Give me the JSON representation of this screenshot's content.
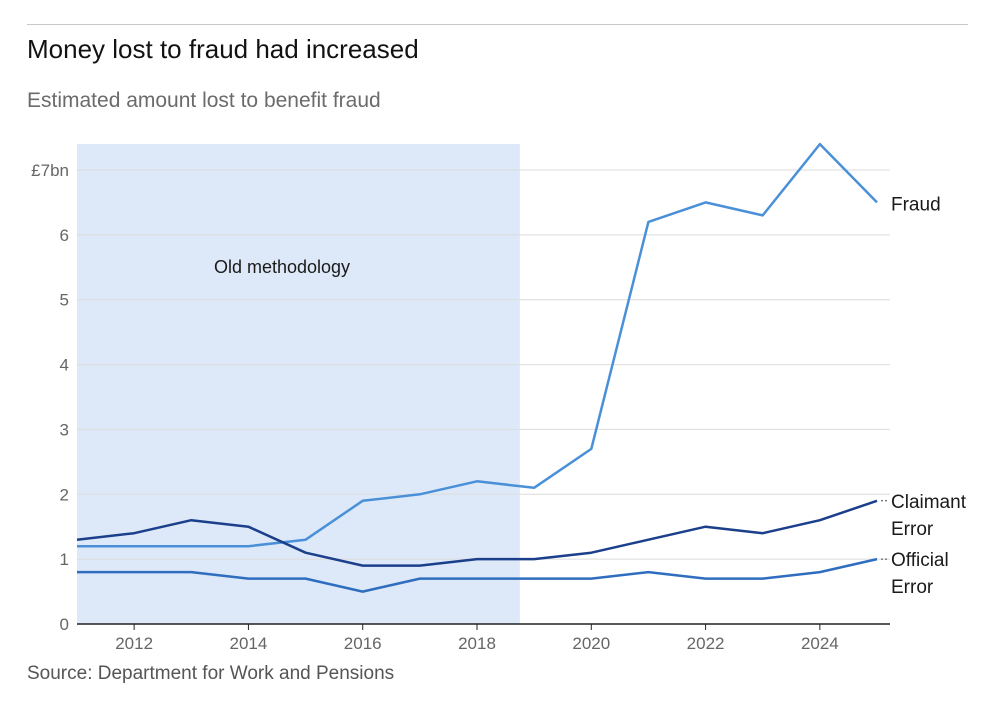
{
  "title": "Money lost to fraud had increased",
  "subtitle": "Estimated amount lost to benefit fraud",
  "source": "Source: Department for Work and Pensions",
  "chart_data": {
    "type": "line",
    "x": [
      2011,
      2012,
      2013,
      2014,
      2015,
      2016,
      2017,
      2018,
      2019,
      2020,
      2021,
      2022,
      2023,
      2024,
      2025
    ],
    "series": [
      {
        "name": "Fraud",
        "color": "#4a90d9",
        "values": [
          1.2,
          1.2,
          1.2,
          1.2,
          1.3,
          1.9,
          2.0,
          2.2,
          2.1,
          2.7,
          6.2,
          6.5,
          6.3,
          7.4,
          6.5
        ]
      },
      {
        "name": "Claimant Error",
        "color": "#1b3f8b",
        "values": [
          1.3,
          1.4,
          1.6,
          1.5,
          1.1,
          0.9,
          0.9,
          1.0,
          1.0,
          1.1,
          1.3,
          1.5,
          1.4,
          1.6,
          1.9
        ]
      },
      {
        "name": "Official Error",
        "color": "#2f6dbf",
        "values": [
          0.8,
          0.8,
          0.8,
          0.7,
          0.7,
          0.5,
          0.7,
          0.7,
          0.7,
          0.7,
          0.8,
          0.7,
          0.7,
          0.8,
          1.0
        ]
      }
    ],
    "series_label_lines": [
      [
        "Fraud"
      ],
      [
        "Claimant",
        "Error"
      ],
      [
        "Official",
        "Error"
      ]
    ],
    "y_ticks": [
      "0",
      "1",
      "2",
      "3",
      "4",
      "5",
      "6",
      "£7bn"
    ],
    "x_ticks": [
      2012,
      2014,
      2016,
      2018,
      2020,
      2022,
      2024
    ],
    "ylim": [
      0,
      7
    ],
    "xlim": [
      2011,
      2025
    ],
    "shaded_region": {
      "from": 2011,
      "to": 2018.75,
      "label": "Old methodology",
      "color": "#dde9f8"
    },
    "grid": true,
    "legend": "direct labels at line ends"
  }
}
